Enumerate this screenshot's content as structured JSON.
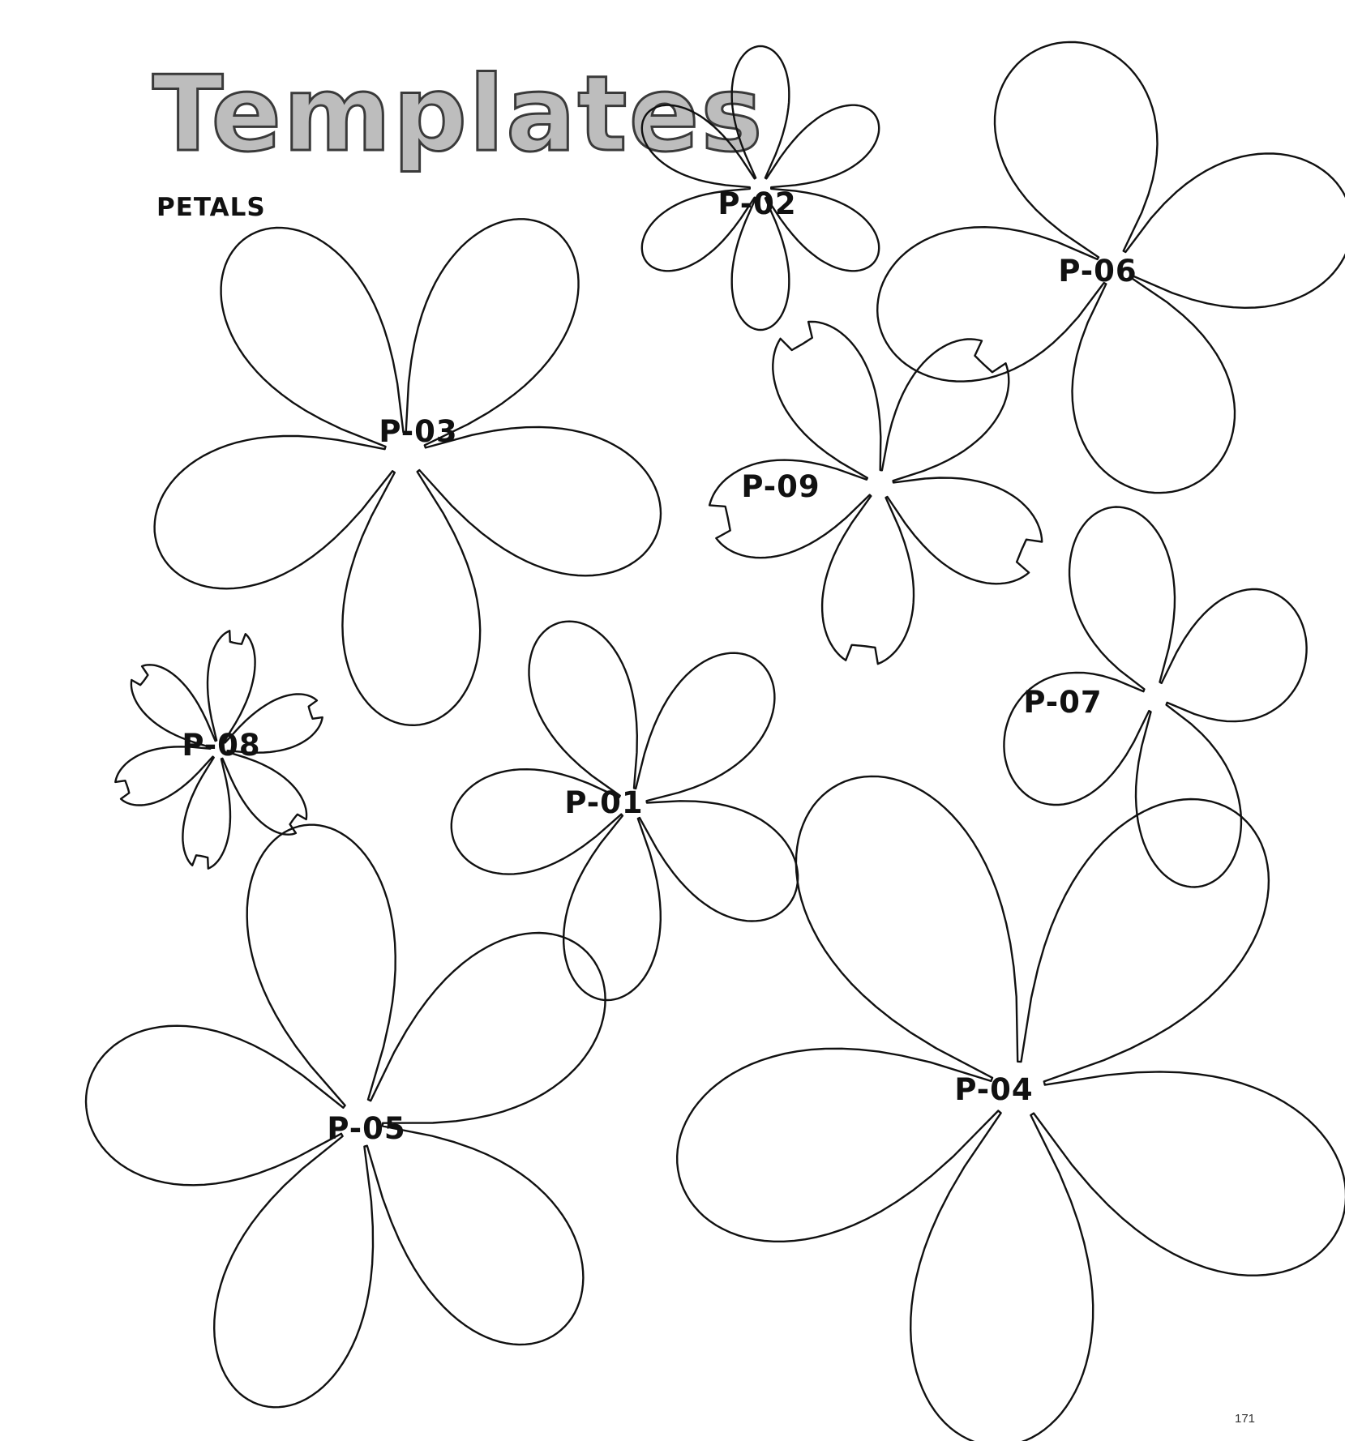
{
  "header": {
    "title": "Templates",
    "subtitle": "PETALS"
  },
  "templates": [
    {
      "id": "p-01",
      "label": "P-01",
      "petals": 5
    },
    {
      "id": "p-02",
      "label": "P-02",
      "petals": 6
    },
    {
      "id": "p-03",
      "label": "P-03",
      "petals": 5
    },
    {
      "id": "p-04",
      "label": "P-04",
      "petals": 5
    },
    {
      "id": "p-05",
      "label": "P-05",
      "petals": 5
    },
    {
      "id": "p-06",
      "label": "P-06",
      "petals": 4
    },
    {
      "id": "p-07",
      "label": "P-07",
      "petals": 4
    },
    {
      "id": "p-08",
      "label": "P-08",
      "petals": 6
    },
    {
      "id": "p-09",
      "label": "P-09",
      "petals": 5
    }
  ],
  "footer": {
    "page_number": "171"
  },
  "colors": {
    "outline": "#111111",
    "title_fill": "#bdbdbd",
    "background": "#ffffff"
  }
}
